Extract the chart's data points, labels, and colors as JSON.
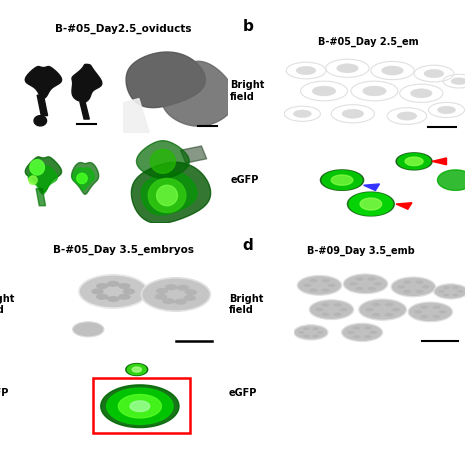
{
  "title_a": "B-#05_Day2.5_oviducts",
  "title_b": "B-#05_Day 2.5_em",
  "title_c": "B-#05_Day 3.5_embryos",
  "title_d": "B-#09_Day 3.5_emb",
  "label_bright": "Bright\nfield",
  "label_egfp": "eGFP",
  "label_b": "b",
  "label_d": "d",
  "bg_white": "#ffffff",
  "panel_a_bf_left_bg": "#d8d8d8",
  "panel_a_bf_right_bg": "#a8a8a8",
  "panel_a_gfp_bg": "#020802",
  "panel_b_bf_bg": "#b8b8b8",
  "panel_b_gfp_bg": "#021002",
  "panel_c_bf_bg": "#b0b0b0",
  "panel_c_gfp_bg": "#010601",
  "panel_d_bf_bg": "#b0b0b0",
  "panel_d_gfp_bg": "#010601"
}
